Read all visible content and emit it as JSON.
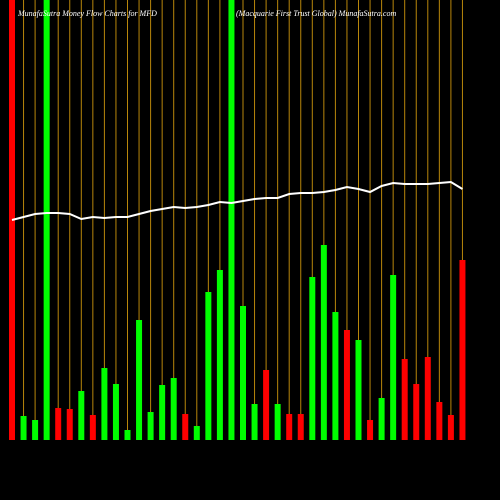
{
  "chart_data": {
    "type": "bar",
    "title": "MunafaSutra  Money Flow  Charts for MFD",
    "subtitle": "(Macquarie   First Trust Global) MunafaSutra.com",
    "categories": [
      null,
      null,
      null,
      null,
      null,
      null,
      null,
      null,
      null,
      null,
      null,
      null,
      null,
      null,
      null,
      null,
      null,
      null,
      null,
      null,
      null,
      null,
      null,
      null,
      null,
      null,
      null,
      null,
      null,
      null,
      null,
      null,
      null,
      null,
      null,
      null,
      null,
      null,
      null,
      null
    ],
    "ylim": [
      0,
      440
    ],
    "grid": true,
    "grid_color": "#b8860b",
    "series": [
      {
        "values": [
          440,
          24,
          20,
          440,
          32,
          31,
          49,
          25,
          72,
          56,
          10,
          120,
          28,
          55,
          62,
          26,
          14,
          148,
          170,
          440,
          134,
          36,
          70,
          36,
          26,
          26,
          163,
          195,
          128,
          110,
          100,
          20,
          42,
          165,
          81,
          56,
          83,
          38,
          25,
          180
        ],
        "colors": [
          "#ff0000",
          "#00ff00",
          "#00ff00",
          "#00ff00",
          "#ff0000",
          "#ff0000",
          "#00ff00",
          "#ff0000",
          "#00ff00",
          "#00ff00",
          "#00ff00",
          "#00ff00",
          "#00ff00",
          "#00ff00",
          "#00ff00",
          "#ff0000",
          "#00ff00",
          "#00ff00",
          "#00ff00",
          "#00ff00",
          "#00ff00",
          "#00ff00",
          "#ff0000",
          "#00ff00",
          "#ff0000",
          "#ff0000",
          "#00ff00",
          "#00ff00",
          "#00ff00",
          "#ff0000",
          "#00ff00",
          "#ff0000",
          "#00ff00",
          "#00ff00",
          "#ff0000",
          "#ff0000",
          "#ff0000",
          "#ff0000",
          "#ff0000",
          "#ff0000"
        ]
      },
      {
        "type": "line",
        "color": "#ffffff",
        "values": [
          220,
          223,
          226,
          227,
          227,
          226,
          221,
          223,
          222,
          223,
          223,
          226,
          229,
          231,
          233,
          232,
          233,
          235,
          238,
          237,
          239,
          241,
          242,
          242,
          246,
          247,
          247,
          248,
          250,
          253,
          251,
          248,
          254,
          257,
          256,
          256,
          256,
          257,
          258,
          251
        ]
      }
    ]
  }
}
